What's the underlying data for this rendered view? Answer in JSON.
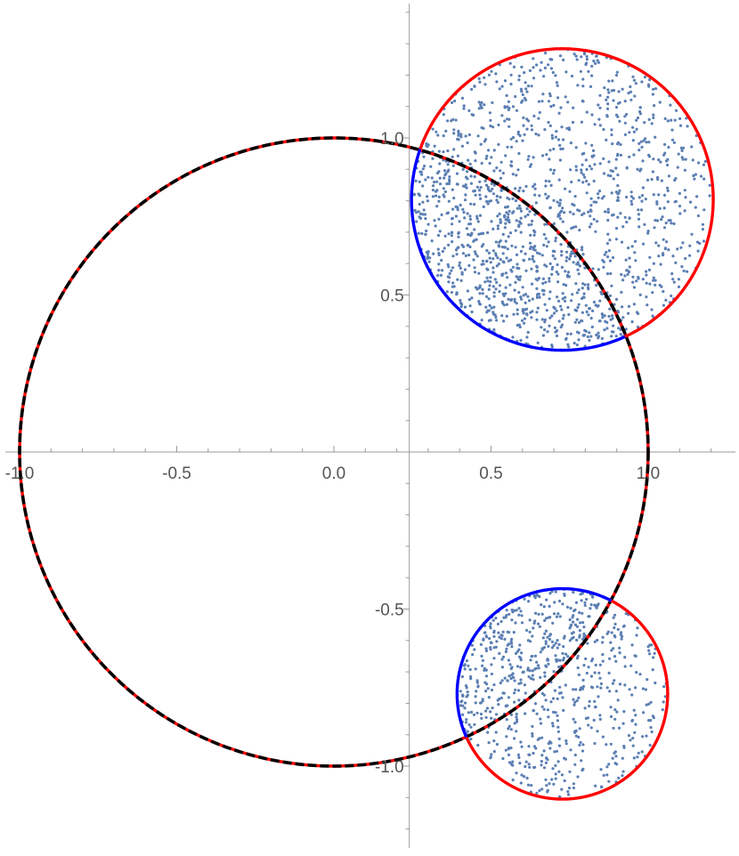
{
  "chart_data": {
    "type": "scatter",
    "title": "",
    "xlabel": "",
    "ylabel": "",
    "xlim": [
      -1.02,
      1.25
    ],
    "ylim": [
      -1.26,
      1.43
    ],
    "grid": false,
    "legend": "none",
    "axes_cross_at": [
      0.24,
      0
    ],
    "x_ticks": [
      {
        "value": -1.0,
        "label": "-1.0"
      },
      {
        "value": -0.5,
        "label": "-0.5"
      },
      {
        "value": 0.0,
        "label": "0.0"
      },
      {
        "value": 0.5,
        "label": "0.5"
      },
      {
        "value": 1.0,
        "label": "1.0"
      }
    ],
    "y_ticks": [
      {
        "value": -1.0,
        "label": "-1.0"
      },
      {
        "value": -0.5,
        "label": "-0.5"
      },
      {
        "value": 0.5,
        "label": "0.5"
      },
      {
        "value": 1.0,
        "label": "1.0"
      }
    ],
    "unit_circle": {
      "center": [
        0,
        0
      ],
      "radius": 1,
      "style": "black dashed over red",
      "colors": {
        "base": "#ff0000",
        "dash": "#000000"
      }
    },
    "disks": [
      {
        "center": [
          0.727,
          0.804
        ],
        "radius": 0.48,
        "outside_unit_circle_arc_color": "#ff0000",
        "inside_unit_circle_arc_color": "#0000ff",
        "point_count": 1500,
        "point_distribution": "denser inside the unit circle"
      },
      {
        "center": [
          0.727,
          -0.77
        ],
        "radius": 0.335,
        "outside_unit_circle_arc_color": "#ff0000",
        "inside_unit_circle_arc_color": "#0000ff",
        "point_count": 750,
        "point_distribution": "denser inside the unit circle"
      }
    ],
    "point_color": "#5b7fb3"
  }
}
